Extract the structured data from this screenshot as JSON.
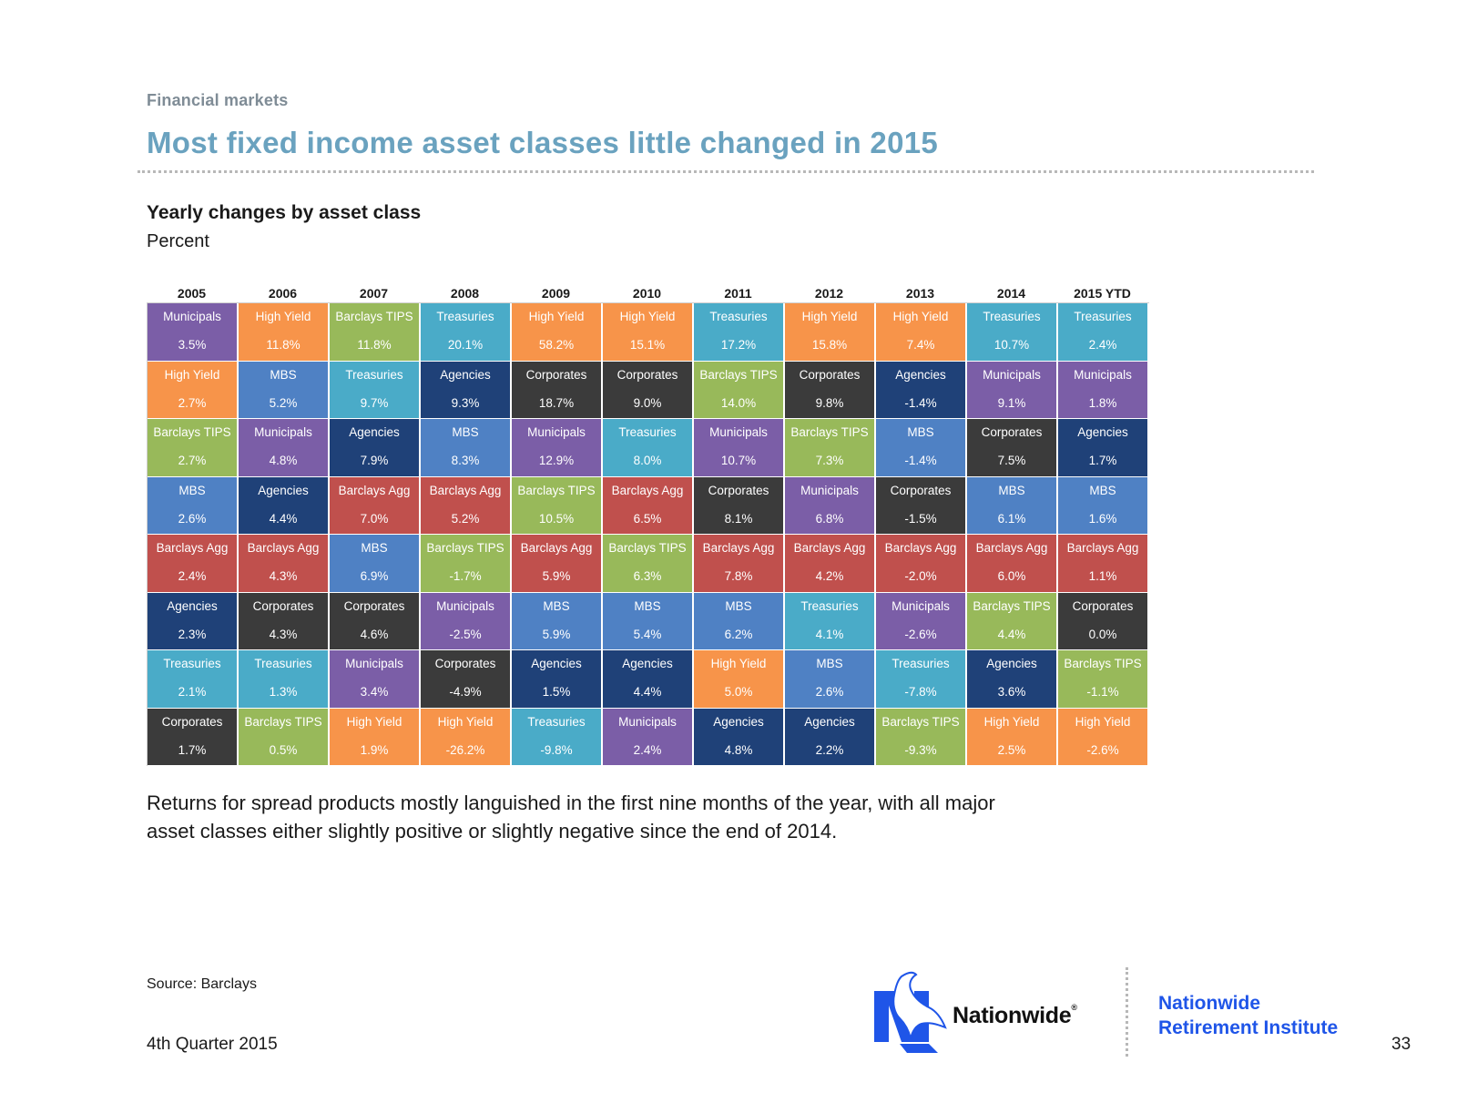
{
  "header": {
    "section": "Financial markets",
    "title": "Most fixed income asset classes little changed in 2015"
  },
  "chart": {
    "title": "Yearly changes by asset class",
    "subtitle": "Percent"
  },
  "colors": {
    "Municipals": "#7b5ea7",
    "High Yield": "#f7944a",
    "Barclays TIPS": "#98b95a",
    "Treasuries": "#4aabc8",
    "MBS": "#4f81c4",
    "Agencies": "#1f4178",
    "Barclays Agg": "#c0504d",
    "Corporates": "#3b3b3b"
  },
  "chart_data": {
    "type": "table",
    "title": "Yearly changes by asset class",
    "subtitle": "Percent",
    "columns": [
      {
        "year": "2005",
        "cells": [
          {
            "name": "Municipals",
            "value": "3.5%"
          },
          {
            "name": "High Yield",
            "value": "2.7%"
          },
          {
            "name": "Barclays TIPS",
            "value": "2.7%"
          },
          {
            "name": "MBS",
            "value": "2.6%"
          },
          {
            "name": "Barclays Agg",
            "value": "2.4%"
          },
          {
            "name": "Agencies",
            "value": "2.3%"
          },
          {
            "name": "Treasuries",
            "value": "2.1%"
          },
          {
            "name": "Corporates",
            "value": "1.7%"
          }
        ]
      },
      {
        "year": "2006",
        "cells": [
          {
            "name": "High Yield",
            "value": "11.8%"
          },
          {
            "name": "MBS",
            "value": "5.2%"
          },
          {
            "name": "Municipals",
            "value": "4.8%"
          },
          {
            "name": "Agencies",
            "value": "4.4%"
          },
          {
            "name": "Barclays Agg",
            "value": "4.3%"
          },
          {
            "name": "Corporates",
            "value": "4.3%"
          },
          {
            "name": "Treasuries",
            "value": "1.3%"
          },
          {
            "name": "Barclays TIPS",
            "value": "0.5%"
          }
        ]
      },
      {
        "year": "2007",
        "cells": [
          {
            "name": "Barclays TIPS",
            "value": "11.8%"
          },
          {
            "name": "Treasuries",
            "value": "9.7%"
          },
          {
            "name": "Agencies",
            "value": "7.9%"
          },
          {
            "name": "Barclays Agg",
            "value": "7.0%"
          },
          {
            "name": "MBS",
            "value": "6.9%"
          },
          {
            "name": "Corporates",
            "value": "4.6%"
          },
          {
            "name": "Municipals",
            "value": "3.4%"
          },
          {
            "name": "High Yield",
            "value": "1.9%"
          }
        ]
      },
      {
        "year": "2008",
        "cells": [
          {
            "name": "Treasuries",
            "value": "20.1%"
          },
          {
            "name": "Agencies",
            "value": "9.3%"
          },
          {
            "name": "MBS",
            "value": "8.3%"
          },
          {
            "name": "Barclays Agg",
            "value": "5.2%"
          },
          {
            "name": "Barclays TIPS",
            "value": "-1.7%"
          },
          {
            "name": "Municipals",
            "value": "-2.5%"
          },
          {
            "name": "Corporates",
            "value": "-4.9%"
          },
          {
            "name": "High Yield",
            "value": "-26.2%"
          }
        ]
      },
      {
        "year": "2009",
        "cells": [
          {
            "name": "High Yield",
            "value": "58.2%"
          },
          {
            "name": "Corporates",
            "value": "18.7%"
          },
          {
            "name": "Municipals",
            "value": "12.9%"
          },
          {
            "name": "Barclays TIPS",
            "value": "10.5%"
          },
          {
            "name": "Barclays Agg",
            "value": "5.9%"
          },
          {
            "name": "MBS",
            "value": "5.9%"
          },
          {
            "name": "Agencies",
            "value": "1.5%"
          },
          {
            "name": "Treasuries",
            "value": "-9.8%"
          }
        ]
      },
      {
        "year": "2010",
        "cells": [
          {
            "name": "High Yield",
            "value": "15.1%"
          },
          {
            "name": "Corporates",
            "value": "9.0%"
          },
          {
            "name": "Treasuries",
            "value": "8.0%"
          },
          {
            "name": "Barclays Agg",
            "value": "6.5%"
          },
          {
            "name": "Barclays TIPS",
            "value": "6.3%"
          },
          {
            "name": "MBS",
            "value": "5.4%"
          },
          {
            "name": "Agencies",
            "value": "4.4%"
          },
          {
            "name": "Municipals",
            "value": "2.4%"
          }
        ]
      },
      {
        "year": "2011",
        "cells": [
          {
            "name": "Treasuries",
            "value": "17.2%"
          },
          {
            "name": "Barclays TIPS",
            "value": "14.0%"
          },
          {
            "name": "Municipals",
            "value": "10.7%"
          },
          {
            "name": "Corporates",
            "value": "8.1%"
          },
          {
            "name": "Barclays Agg",
            "value": "7.8%"
          },
          {
            "name": "MBS",
            "value": "6.2%"
          },
          {
            "name": "High Yield",
            "value": "5.0%"
          },
          {
            "name": "Agencies",
            "value": "4.8%"
          }
        ]
      },
      {
        "year": "2012",
        "cells": [
          {
            "name": "High Yield",
            "value": "15.8%"
          },
          {
            "name": "Corporates",
            "value": "9.8%"
          },
          {
            "name": "Barclays TIPS",
            "value": "7.3%"
          },
          {
            "name": "Municipals",
            "value": "6.8%"
          },
          {
            "name": "Barclays Agg",
            "value": "4.2%"
          },
          {
            "name": "Treasuries",
            "value": "4.1%"
          },
          {
            "name": "MBS",
            "value": "2.6%"
          },
          {
            "name": "Agencies",
            "value": "2.2%"
          }
        ]
      },
      {
        "year": "2013",
        "cells": [
          {
            "name": "High Yield",
            "value": "7.4%"
          },
          {
            "name": "Agencies",
            "value": "-1.4%"
          },
          {
            "name": "MBS",
            "value": "-1.4%"
          },
          {
            "name": "Corporates",
            "value": "-1.5%"
          },
          {
            "name": "Barclays Agg",
            "value": "-2.0%"
          },
          {
            "name": "Municipals",
            "value": "-2.6%"
          },
          {
            "name": "Treasuries",
            "value": "-7.8%"
          },
          {
            "name": "Barclays TIPS",
            "value": "-9.3%"
          }
        ]
      },
      {
        "year": "2014",
        "cells": [
          {
            "name": "Treasuries",
            "value": "10.7%"
          },
          {
            "name": "Municipals",
            "value": "9.1%"
          },
          {
            "name": "Corporates",
            "value": "7.5%"
          },
          {
            "name": "MBS",
            "value": "6.1%"
          },
          {
            "name": "Barclays Agg",
            "value": "6.0%"
          },
          {
            "name": "Barclays TIPS",
            "value": "4.4%"
          },
          {
            "name": "Agencies",
            "value": "3.6%"
          },
          {
            "name": "High Yield",
            "value": "2.5%"
          }
        ]
      },
      {
        "year": "2015 YTD",
        "cells": [
          {
            "name": "Treasuries",
            "value": "2.4%"
          },
          {
            "name": "Municipals",
            "value": "1.8%"
          },
          {
            "name": "Agencies",
            "value": "1.7%"
          },
          {
            "name": "MBS",
            "value": "1.6%"
          },
          {
            "name": "Barclays Agg",
            "value": "1.1%"
          },
          {
            "name": "Corporates",
            "value": "0.0%"
          },
          {
            "name": "Barclays TIPS",
            "value": "-1.1%"
          },
          {
            "name": "High Yield",
            "value": "-2.6%"
          }
        ]
      }
    ]
  },
  "commentary": "Returns for spread products mostly languished in the first nine months of the year, with all major asset classes either slightly positive or slightly negative since the end of 2014.",
  "footer": {
    "source": "Source: Barclays",
    "quarter": "4th Quarter 2015",
    "brand": "Nationwide",
    "brand_mark": "®",
    "institute_line1": "Nationwide",
    "institute_line2": "Retirement Institute",
    "page_number": "33",
    "logo_icon": "eagle-n-logo-icon"
  }
}
